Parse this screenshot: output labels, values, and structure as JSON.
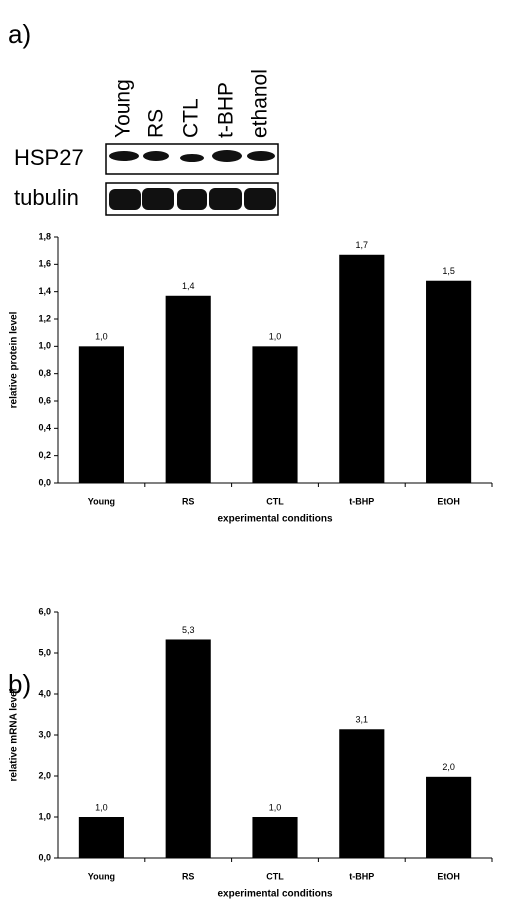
{
  "panel_labels": [
    "a)",
    "b)"
  ],
  "blot": {
    "lanes": [
      "Young",
      "RS",
      "CTL",
      "t-BHP",
      "ethanol"
    ],
    "rows": [
      "HSP27",
      "tubulin"
    ]
  },
  "chart_data": [
    {
      "type": "bar",
      "x_label": "experimental conditions",
      "y_label": "relative protein level",
      "categories": [
        "Young",
        "RS",
        "CTL",
        "t-BHP",
        "EtOH"
      ],
      "values": [
        1.0,
        1.37,
        1.0,
        1.67,
        1.48
      ],
      "value_labels": [
        "1,0",
        "1,4",
        "1,0",
        "1,7",
        "1,5"
      ],
      "color": "#000000",
      "ylim": [
        0,
        1.8
      ],
      "yticks": [
        {
          "value": 0,
          "label": "0,0"
        },
        {
          "value": 0.2,
          "label": "0,2"
        },
        {
          "value": 0.4,
          "label": "0,4"
        },
        {
          "value": 0.6,
          "label": "0,6"
        },
        {
          "value": 0.8,
          "label": "0,8"
        },
        {
          "value": 1.0,
          "label": "1,0"
        },
        {
          "value": 1.2,
          "label": "1,2"
        },
        {
          "value": 1.4,
          "label": "1,4"
        },
        {
          "value": 1.6,
          "label": "1,6"
        },
        {
          "value": 1.8,
          "label": "1,8"
        }
      ]
    },
    {
      "type": "bar",
      "x_label": "experimental conditions",
      "y_label": "relative mRNA level",
      "categories": [
        "Young",
        "RS",
        "CTL",
        "t-BHP",
        "EtOH"
      ],
      "values": [
        1.0,
        5.33,
        1.0,
        3.14,
        1.98
      ],
      "value_labels": [
        "1,0",
        "5,3",
        "1,0",
        "3,1",
        "2,0"
      ],
      "color": "#000000",
      "ylim": [
        0,
        6
      ],
      "yticks": [
        {
          "value": 0,
          "label": "0,0"
        },
        {
          "value": 1,
          "label": "1,0"
        },
        {
          "value": 2,
          "label": "2,0"
        },
        {
          "value": 3,
          "label": "3,0"
        },
        {
          "value": 4,
          "label": "4,0"
        },
        {
          "value": 5,
          "label": "5,0"
        },
        {
          "value": 6,
          "label": "6,0"
        }
      ]
    }
  ]
}
